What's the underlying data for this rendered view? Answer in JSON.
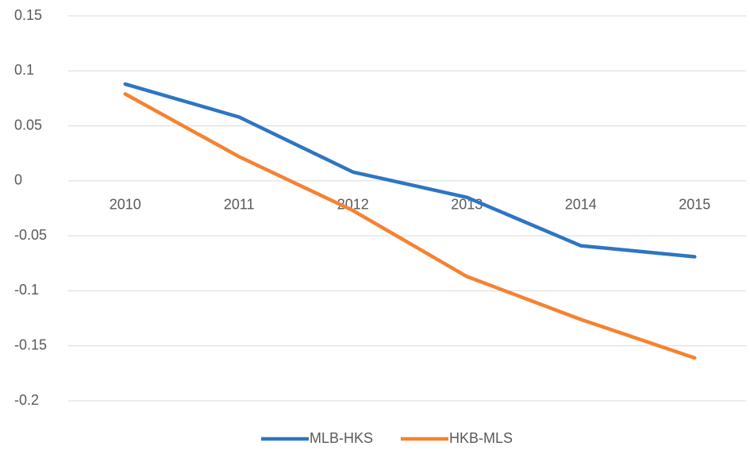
{
  "chart_data": {
    "type": "line",
    "categories": [
      "2010",
      "2011",
      "2012",
      "2013",
      "2014",
      "2015"
    ],
    "series": [
      {
        "name": "MLB-HKS",
        "color": "#2e75c4",
        "values": [
          0.088,
          0.058,
          0.008,
          -0.015,
          -0.059,
          -0.069
        ]
      },
      {
        "name": "HKB-MLS",
        "color": "#f58231",
        "values": [
          0.079,
          0.022,
          -0.027,
          -0.087,
          -0.126,
          -0.161
        ]
      }
    ],
    "ylim": [
      -0.2,
      0.15
    ],
    "yticks": [
      -0.2,
      -0.15,
      -0.1,
      -0.05,
      0,
      0.05,
      0.1,
      0.15
    ],
    "grid": true,
    "legend": "bottom"
  }
}
